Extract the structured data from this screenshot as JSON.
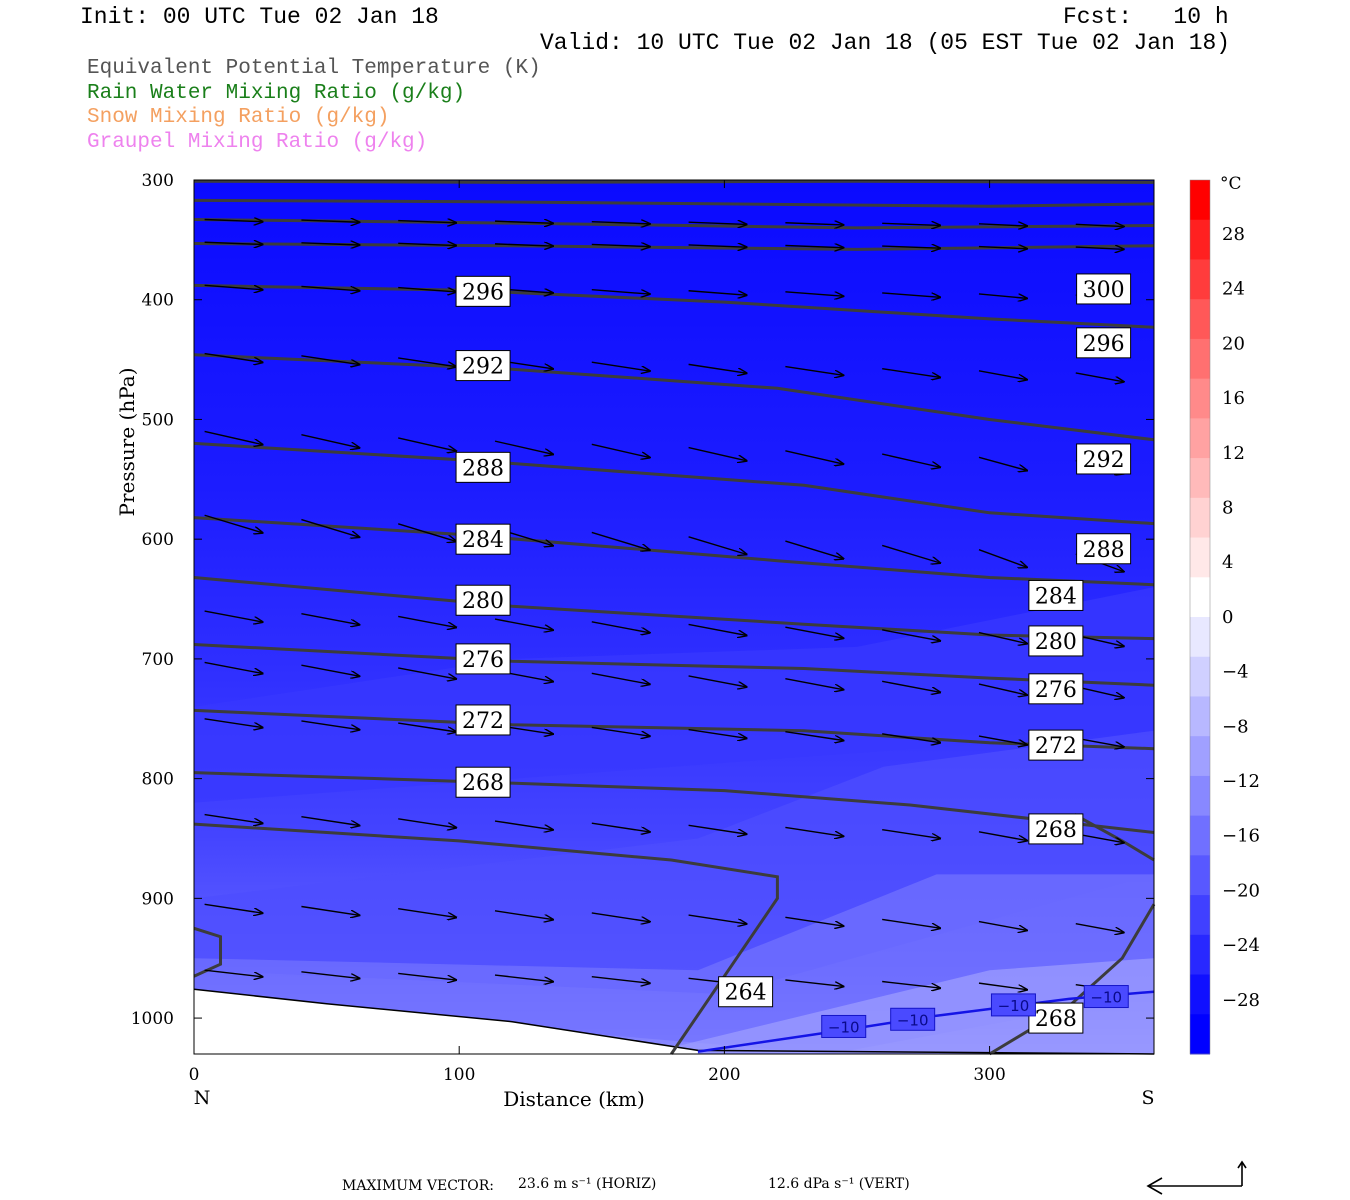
{
  "header": {
    "init": "Init: 00 UTC Tue 02 Jan 18",
    "fcst": "Fcst:   10 h",
    "valid": "Valid: 10 UTC Tue 02 Jan 18 (05 EST Tue 02 Jan 18)"
  },
  "legend": [
    {
      "label": "Equivalent Potential Temperature (K)",
      "color": "#555555"
    },
    {
      "label": "Rain Water Mixing Ratio (g/kg)",
      "color": "#1a7f1a"
    },
    {
      "label": "Snow Mixing Ratio (g/kg)",
      "color": "#f4a060"
    },
    {
      "label": "Graupel Mixing Ratio (g/kg)",
      "color": "#ee82ee"
    }
  ],
  "footer": {
    "max_vector_label": "MAXIMUM VECTOR:",
    "horiz": "23.6 m s⁻¹ (HORIZ)",
    "vert": "12.6 dPa s⁻¹ (VERT)"
  },
  "chart_data": {
    "type": "cross-section",
    "xlabel": "Distance (km)",
    "ylabel": "Pressure (hPa)",
    "x_ticks": [
      0,
      100,
      200,
      300
    ],
    "x_end_labels": {
      "left": "N",
      "right": "S"
    },
    "y_ticks": [
      300,
      400,
      500,
      600,
      700,
      800,
      900,
      1000
    ],
    "xlim": [
      0,
      362
    ],
    "ylim": [
      300,
      1030
    ],
    "colorbar": {
      "unit": "°C",
      "ticks": [
        "28",
        "24",
        "20",
        "16",
        "12",
        "8",
        "4",
        "0",
        "−4",
        "−8",
        "−12",
        "−16",
        "−20",
        "−24",
        "−28"
      ],
      "colors": [
        "#ff0000",
        "#ff2020",
        "#ff3c3c",
        "#ff5858",
        "#ff7070",
        "#ff8a8a",
        "#ffa2a2",
        "#ffbaba",
        "#ffd2d2",
        "#ffe8e8",
        "#ffffff",
        "#e8e8ff",
        "#d0d0ff",
        "#b8b8ff",
        "#a0a0ff",
        "#8888ff",
        "#7070ff",
        "#5858ff",
        "#4040ff",
        "#2828ff",
        "#1010ff",
        "#0000ff"
      ]
    },
    "theta_e_labels": [
      {
        "text": "296",
        "x": 109,
        "p": 393
      },
      {
        "text": "292",
        "x": 109,
        "p": 455
      },
      {
        "text": "288",
        "x": 109,
        "p": 540
      },
      {
        "text": "284",
        "x": 109,
        "p": 600
      },
      {
        "text": "280",
        "x": 109,
        "p": 651
      },
      {
        "text": "276",
        "x": 109,
        "p": 700
      },
      {
        "text": "272",
        "x": 109,
        "p": 751
      },
      {
        "text": "268",
        "x": 109,
        "p": 803
      },
      {
        "text": "300",
        "x": 343,
        "p": 391
      },
      {
        "text": "296",
        "x": 343,
        "p": 436
      },
      {
        "text": "292",
        "x": 343,
        "p": 533
      },
      {
        "text": "288",
        "x": 343,
        "p": 608
      },
      {
        "text": "284",
        "x": 325,
        "p": 647
      },
      {
        "text": "280",
        "x": 325,
        "p": 685
      },
      {
        "text": "276",
        "x": 325,
        "p": 725
      },
      {
        "text": "272",
        "x": 325,
        "p": 772
      },
      {
        "text": "268",
        "x": 325,
        "p": 842
      },
      {
        "text": "264",
        "x": 208,
        "p": 978
      },
      {
        "text": "268",
        "x": 325,
        "p": 1000
      }
    ],
    "temp_contour_labels": [
      {
        "text": "−10",
        "x": 245,
        "p": 1007
      },
      {
        "text": "−10",
        "x": 271,
        "p": 1001
      },
      {
        "text": "−10",
        "x": 309,
        "p": 989
      },
      {
        "text": "−10",
        "x": 344,
        "p": 982
      }
    ]
  }
}
